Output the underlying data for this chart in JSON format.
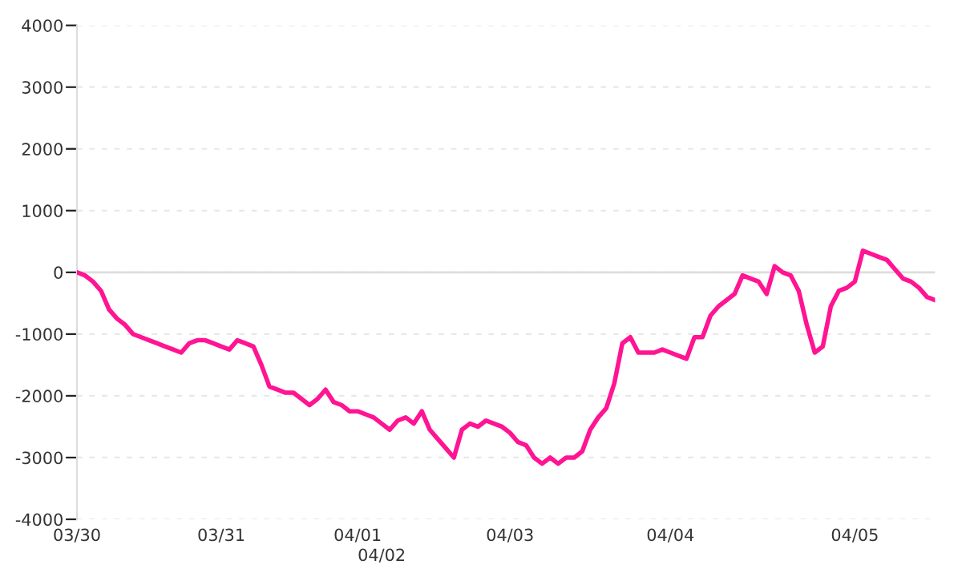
{
  "chart_data": {
    "type": "line",
    "categories": [
      "03/30",
      null,
      null,
      null,
      null,
      null,
      null,
      null,
      null,
      null,
      null,
      null,
      null,
      null,
      null,
      null,
      null,
      null,
      "03/31",
      null,
      null,
      null,
      null,
      null,
      null,
      null,
      null,
      null,
      null,
      null,
      null,
      null,
      null,
      null,
      null,
      "04/01",
      null,
      null,
      "04/02",
      null,
      null,
      null,
      null,
      null,
      null,
      null,
      null,
      null,
      null,
      null,
      null,
      null,
      null,
      null,
      "04/03",
      null,
      null,
      null,
      null,
      null,
      null,
      null,
      null,
      null,
      null,
      null,
      null,
      null,
      null,
      null,
      null,
      null,
      null,
      null,
      "04/04",
      null,
      null,
      null,
      null,
      null,
      null,
      null,
      null,
      null,
      null,
      null,
      null,
      null,
      null,
      null,
      null,
      null,
      null,
      null,
      null,
      null,
      null,
      "04/05",
      null,
      null,
      null,
      null,
      null,
      null,
      null,
      null,
      null,
      null
    ],
    "series": [
      {
        "color": "#ff1493",
        "values": [
          0,
          -50,
          -150,
          -300,
          -600,
          -750,
          -850,
          -1000,
          -1050,
          -1100,
          -1150,
          -1200,
          -1250,
          -1300,
          -1150,
          -1100,
          -1100,
          -1150,
          -1200,
          -1250,
          -1100,
          -1150,
          -1200,
          -1500,
          -1850,
          -1900,
          -1950,
          -1950,
          -2050,
          -2150,
          -2050,
          -1900,
          -2100,
          -2150,
          -2250,
          -2250,
          -2300,
          -2350,
          -2450,
          -2550,
          -2400,
          -2350,
          -2450,
          -2250,
          -2550,
          -2700,
          -2850,
          -3000,
          -2550,
          -2450,
          -2500,
          -2400,
          -2450,
          -2500,
          -2600,
          -2750,
          -2800,
          -3000,
          -3100,
          -3000,
          -3100,
          -3000,
          -3000,
          -2900,
          -2550,
          -2350,
          -2200,
          -1800,
          -1150,
          -1050,
          -1300,
          -1300,
          -1300,
          -1250,
          -1300,
          -1350,
          -1400,
          -1050,
          -1050,
          -700,
          -550,
          -450,
          -350,
          -50,
          -100,
          -150,
          -350,
          100,
          0,
          -50,
          -300,
          -850,
          -1300,
          -1200,
          -550,
          -300,
          -250,
          -150,
          350,
          300,
          250,
          200,
          50,
          -100,
          -150,
          -250,
          -400,
          -450
        ]
      }
    ],
    "ylim": [
      -4000,
      4000
    ],
    "yticks": [
      -4000,
      -3000,
      -2000,
      -1000,
      0,
      1000,
      2000,
      3000,
      4000
    ],
    "grid": "y",
    "ref_lines": [
      {
        "axis": "y",
        "value": 0,
        "color": "#dddddd"
      }
    ],
    "marker": "none",
    "line_style": "solid"
  }
}
